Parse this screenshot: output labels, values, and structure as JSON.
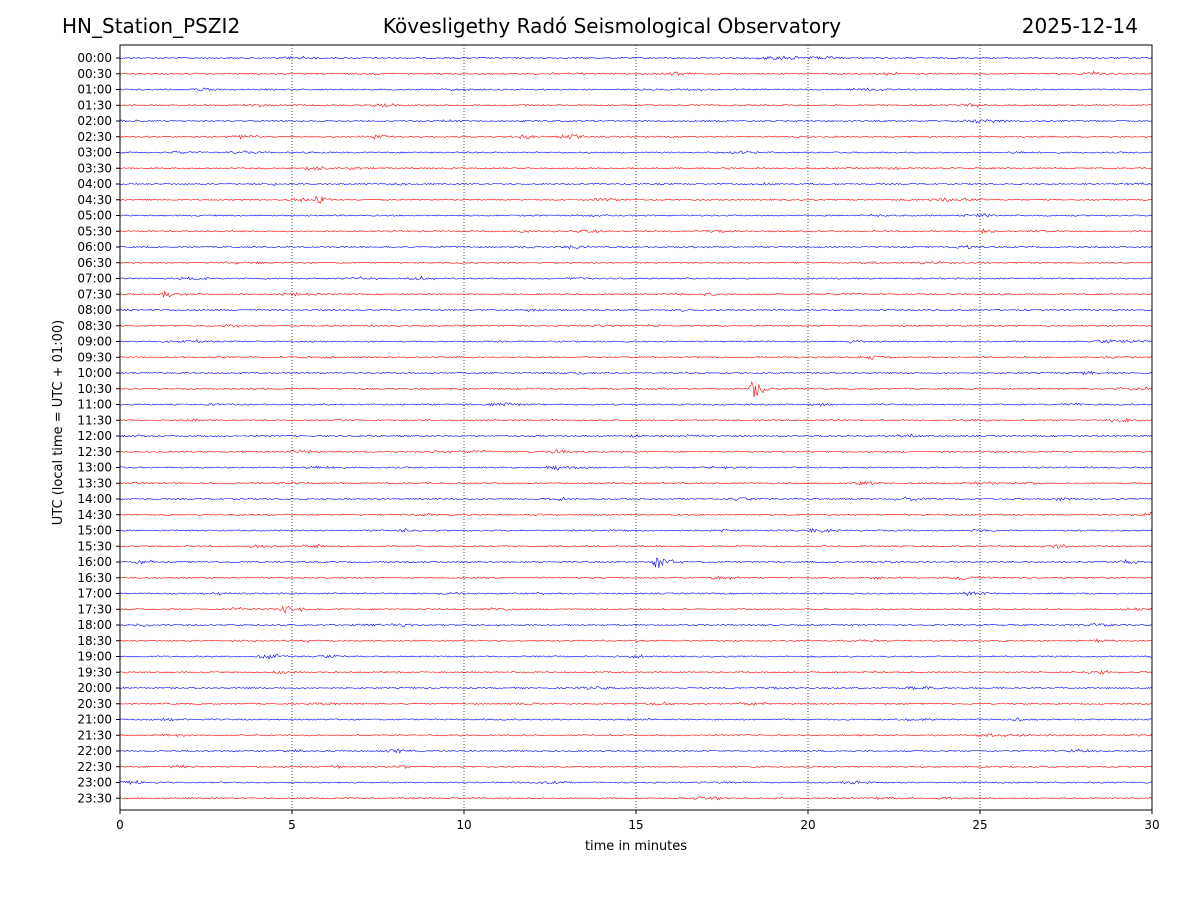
{
  "header": {
    "station": "HN_Station_PSZI2",
    "title": "Kövesligethy Radó Seismological Observatory",
    "date": "2025-12-14"
  },
  "chart_data": {
    "type": "line",
    "title": "Kövesligethy Radó Seismological Observatory",
    "xlabel": "time in minutes",
    "ylabel": "UTC (local time = UTC + 01:00)",
    "xlim": [
      0,
      30
    ],
    "xticks": [
      0,
      5,
      10,
      15,
      20,
      25,
      30
    ],
    "vgrid": [
      5,
      10,
      15,
      20,
      25
    ],
    "grid": "vertical dotted",
    "rows": [
      "00:00",
      "00:30",
      "01:00",
      "01:30",
      "02:00",
      "02:30",
      "03:00",
      "03:30",
      "04:00",
      "04:30",
      "05:00",
      "05:30",
      "06:00",
      "06:30",
      "07:00",
      "07:30",
      "08:00",
      "08:30",
      "09:00",
      "09:30",
      "10:00",
      "10:30",
      "11:00",
      "11:30",
      "12:00",
      "12:30",
      "13:00",
      "13:30",
      "14:00",
      "14:30",
      "15:00",
      "15:30",
      "16:00",
      "16:30",
      "17:00",
      "17:30",
      "18:00",
      "18:30",
      "19:00",
      "19:30",
      "20:00",
      "20:30",
      "21:00",
      "21:30",
      "22:00",
      "22:30",
      "23:00",
      "23:30"
    ],
    "colors": {
      "hour": "#0000ff",
      "half_hour": "#ff0000"
    },
    "events": [
      {
        "row": "04:30",
        "minute": 5.7,
        "amplitude": 0.35
      },
      {
        "row": "05:30",
        "minute": 25.1,
        "amplitude": 0.2
      },
      {
        "row": "07:30",
        "minute": 1.3,
        "amplitude": 0.25
      },
      {
        "row": "10:30",
        "minute": 18.4,
        "amplitude": 0.75
      },
      {
        "row": "16:00",
        "minute": 15.6,
        "amplitude": 0.55
      },
      {
        "row": "17:30",
        "minute": 4.8,
        "amplitude": 0.3
      },
      {
        "row": "15:00",
        "minute": 8.2,
        "amplitude": 0.15
      },
      {
        "row": "09:00",
        "minute": 21.2,
        "amplitude": 0.15
      },
      {
        "row": "12:00",
        "minute": 14.8,
        "amplitude": 0.12
      }
    ]
  }
}
